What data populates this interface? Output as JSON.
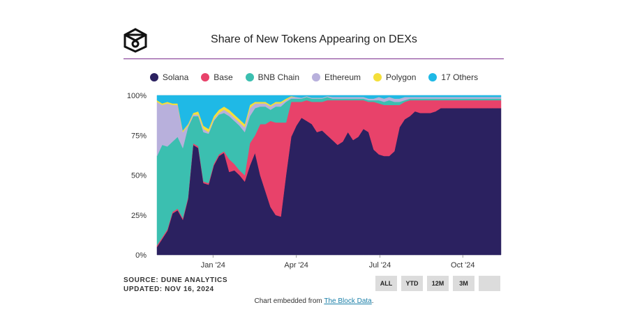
{
  "title": "Share of New Tokens Appearing on DEXs",
  "source_line1": "SOURCE: DUNE ANALYTICS",
  "source_line2": "UPDATED: NOV 16, 2024",
  "embed_prefix": "Chart embedded from ",
  "embed_link": "The Block Data",
  "embed_suffix": ".",
  "range_buttons": [
    "ALL",
    "YTD",
    "12M",
    "3M",
    ""
  ],
  "chart_data": {
    "type": "area",
    "stacked": true,
    "ylim": [
      0,
      100
    ],
    "y_ticks": [
      "100%",
      "75%",
      "50%",
      "25%",
      "0%"
    ],
    "x_ticks": [
      {
        "label": "Jan '24",
        "x": 0.163
      },
      {
        "label": "Apr '24",
        "x": 0.405
      },
      {
        "label": "Jul '24",
        "x": 0.648
      },
      {
        "label": "Oct '24",
        "x": 0.889
      }
    ],
    "legend_position": "top-center",
    "x": [
      0,
      0.015,
      0.03,
      0.045,
      0.06,
      0.075,
      0.09,
      0.105,
      0.12,
      0.135,
      0.15,
      0.165,
      0.18,
      0.195,
      0.21,
      0.225,
      0.24,
      0.255,
      0.27,
      0.285,
      0.3,
      0.315,
      0.33,
      0.345,
      0.36,
      0.375,
      0.39,
      0.405,
      0.42,
      0.435,
      0.45,
      0.465,
      0.48,
      0.495,
      0.51,
      0.525,
      0.54,
      0.555,
      0.57,
      0.585,
      0.6,
      0.615,
      0.63,
      0.645,
      0.66,
      0.675,
      0.69,
      0.705,
      0.72,
      0.735,
      0.75,
      0.765,
      0.78,
      0.795,
      0.81,
      0.825,
      0.84,
      0.855,
      0.87,
      0.885,
      0.9,
      0.915,
      0.93,
      0.945,
      0.96,
      0.975,
      0.99,
      1.0
    ],
    "series": [
      {
        "name": "Solana",
        "color": "#2b2160",
        "values": [
          5,
          10,
          15,
          26,
          28,
          22,
          35,
          69,
          67,
          45,
          44,
          56,
          62,
          64,
          52,
          53,
          50,
          46,
          56,
          64,
          50,
          40,
          30,
          25,
          24,
          50,
          74,
          81,
          86,
          84,
          82,
          77,
          78,
          75,
          72,
          69,
          71,
          77,
          72,
          74,
          79,
          77,
          66,
          63,
          62,
          62,
          65,
          80,
          85,
          87,
          90,
          89,
          89,
          89,
          90,
          92,
          92,
          92,
          92,
          92,
          92,
          92,
          92,
          92,
          92,
          92,
          92,
          92
        ]
      },
      {
        "name": "Base",
        "color": "#e8426a",
        "values": [
          1,
          1,
          1,
          1,
          1,
          1,
          1,
          1,
          1,
          1,
          1,
          1,
          1,
          1,
          8,
          4,
          3,
          4,
          14,
          11,
          32,
          42,
          54,
          58,
          59,
          33,
          22,
          15,
          10,
          13,
          14,
          19,
          18,
          22,
          25,
          28,
          26,
          20,
          25,
          23,
          18,
          19,
          30,
          32,
          32,
          32,
          29,
          14,
          11,
          10,
          7,
          8,
          8,
          8,
          7,
          5,
          5,
          5,
          5,
          5,
          5,
          5,
          5,
          5,
          5,
          5,
          5,
          5
        ]
      },
      {
        "name": "BNB Chain",
        "color": "#3bbfb0",
        "values": [
          56,
          58,
          52,
          44,
          45,
          44,
          44,
          17,
          19,
          31,
          31,
          27,
          25,
          24,
          27,
          27,
          28,
          27,
          17,
          17,
          11,
          11,
          7,
          10,
          10,
          13,
          2,
          2,
          2,
          2,
          2,
          2,
          2,
          2,
          1,
          1,
          1,
          1,
          1,
          1,
          1,
          1,
          1,
          2,
          2,
          3,
          2,
          2,
          1,
          1,
          1,
          1,
          1,
          1,
          1,
          1,
          1,
          1,
          1,
          1,
          1,
          1,
          1,
          1,
          1,
          1,
          1,
          1
        ]
      },
      {
        "name": "Ethereum",
        "color": "#b8b0dc",
        "values": [
          34,
          25,
          27,
          23,
          20,
          10,
          1,
          1,
          1,
          2,
          1,
          1,
          1,
          2,
          2,
          2,
          2,
          3,
          5,
          3,
          2,
          2,
          2,
          2,
          2,
          1,
          1,
          1,
          0.5,
          0.5,
          0.5,
          0.5,
          0.5,
          0.5,
          1,
          1,
          1,
          1,
          1,
          1,
          1,
          1,
          1,
          2,
          2,
          2,
          2,
          2,
          2,
          1,
          1,
          1,
          1,
          1,
          1,
          1,
          1,
          1,
          1,
          1,
          1,
          1,
          1,
          1,
          1,
          1,
          1,
          1
        ]
      },
      {
        "name": "Polygon",
        "color": "#f4df3a",
        "values": [
          1,
          1,
          1,
          1,
          1,
          1,
          1,
          1,
          2,
          2,
          2,
          2,
          2,
          2,
          2,
          2,
          2,
          2,
          2,
          1,
          1,
          1,
          1,
          1,
          1,
          1,
          0.5,
          0,
          0,
          0,
          0,
          0,
          0,
          0,
          0,
          0,
          0,
          0,
          0,
          0,
          0,
          0,
          0,
          0,
          0,
          0,
          0,
          0,
          0,
          0,
          0,
          0,
          0,
          0,
          0,
          0,
          0,
          0,
          0,
          0,
          0,
          0,
          0,
          0,
          0,
          0,
          0,
          0
        ]
      },
      {
        "name": "17 Others",
        "color": "#1fb9e6",
        "values": [
          3,
          5,
          4,
          5,
          5,
          22,
          18,
          11,
          10,
          19,
          21,
          13,
          9,
          7,
          9,
          12,
          15,
          18,
          6,
          4,
          4,
          4,
          6,
          4,
          4,
          2,
          0.5,
          1,
          1.5,
          0.5,
          1.5,
          1.5,
          1.5,
          0.5,
          1,
          1,
          1,
          1,
          1,
          1,
          1,
          2,
          2,
          1,
          2,
          1,
          2,
          2,
          1,
          1,
          1,
          1,
          1,
          1,
          1,
          1,
          1,
          1,
          1,
          1,
          1,
          1,
          1,
          1,
          1,
          1,
          1,
          1
        ]
      }
    ]
  }
}
